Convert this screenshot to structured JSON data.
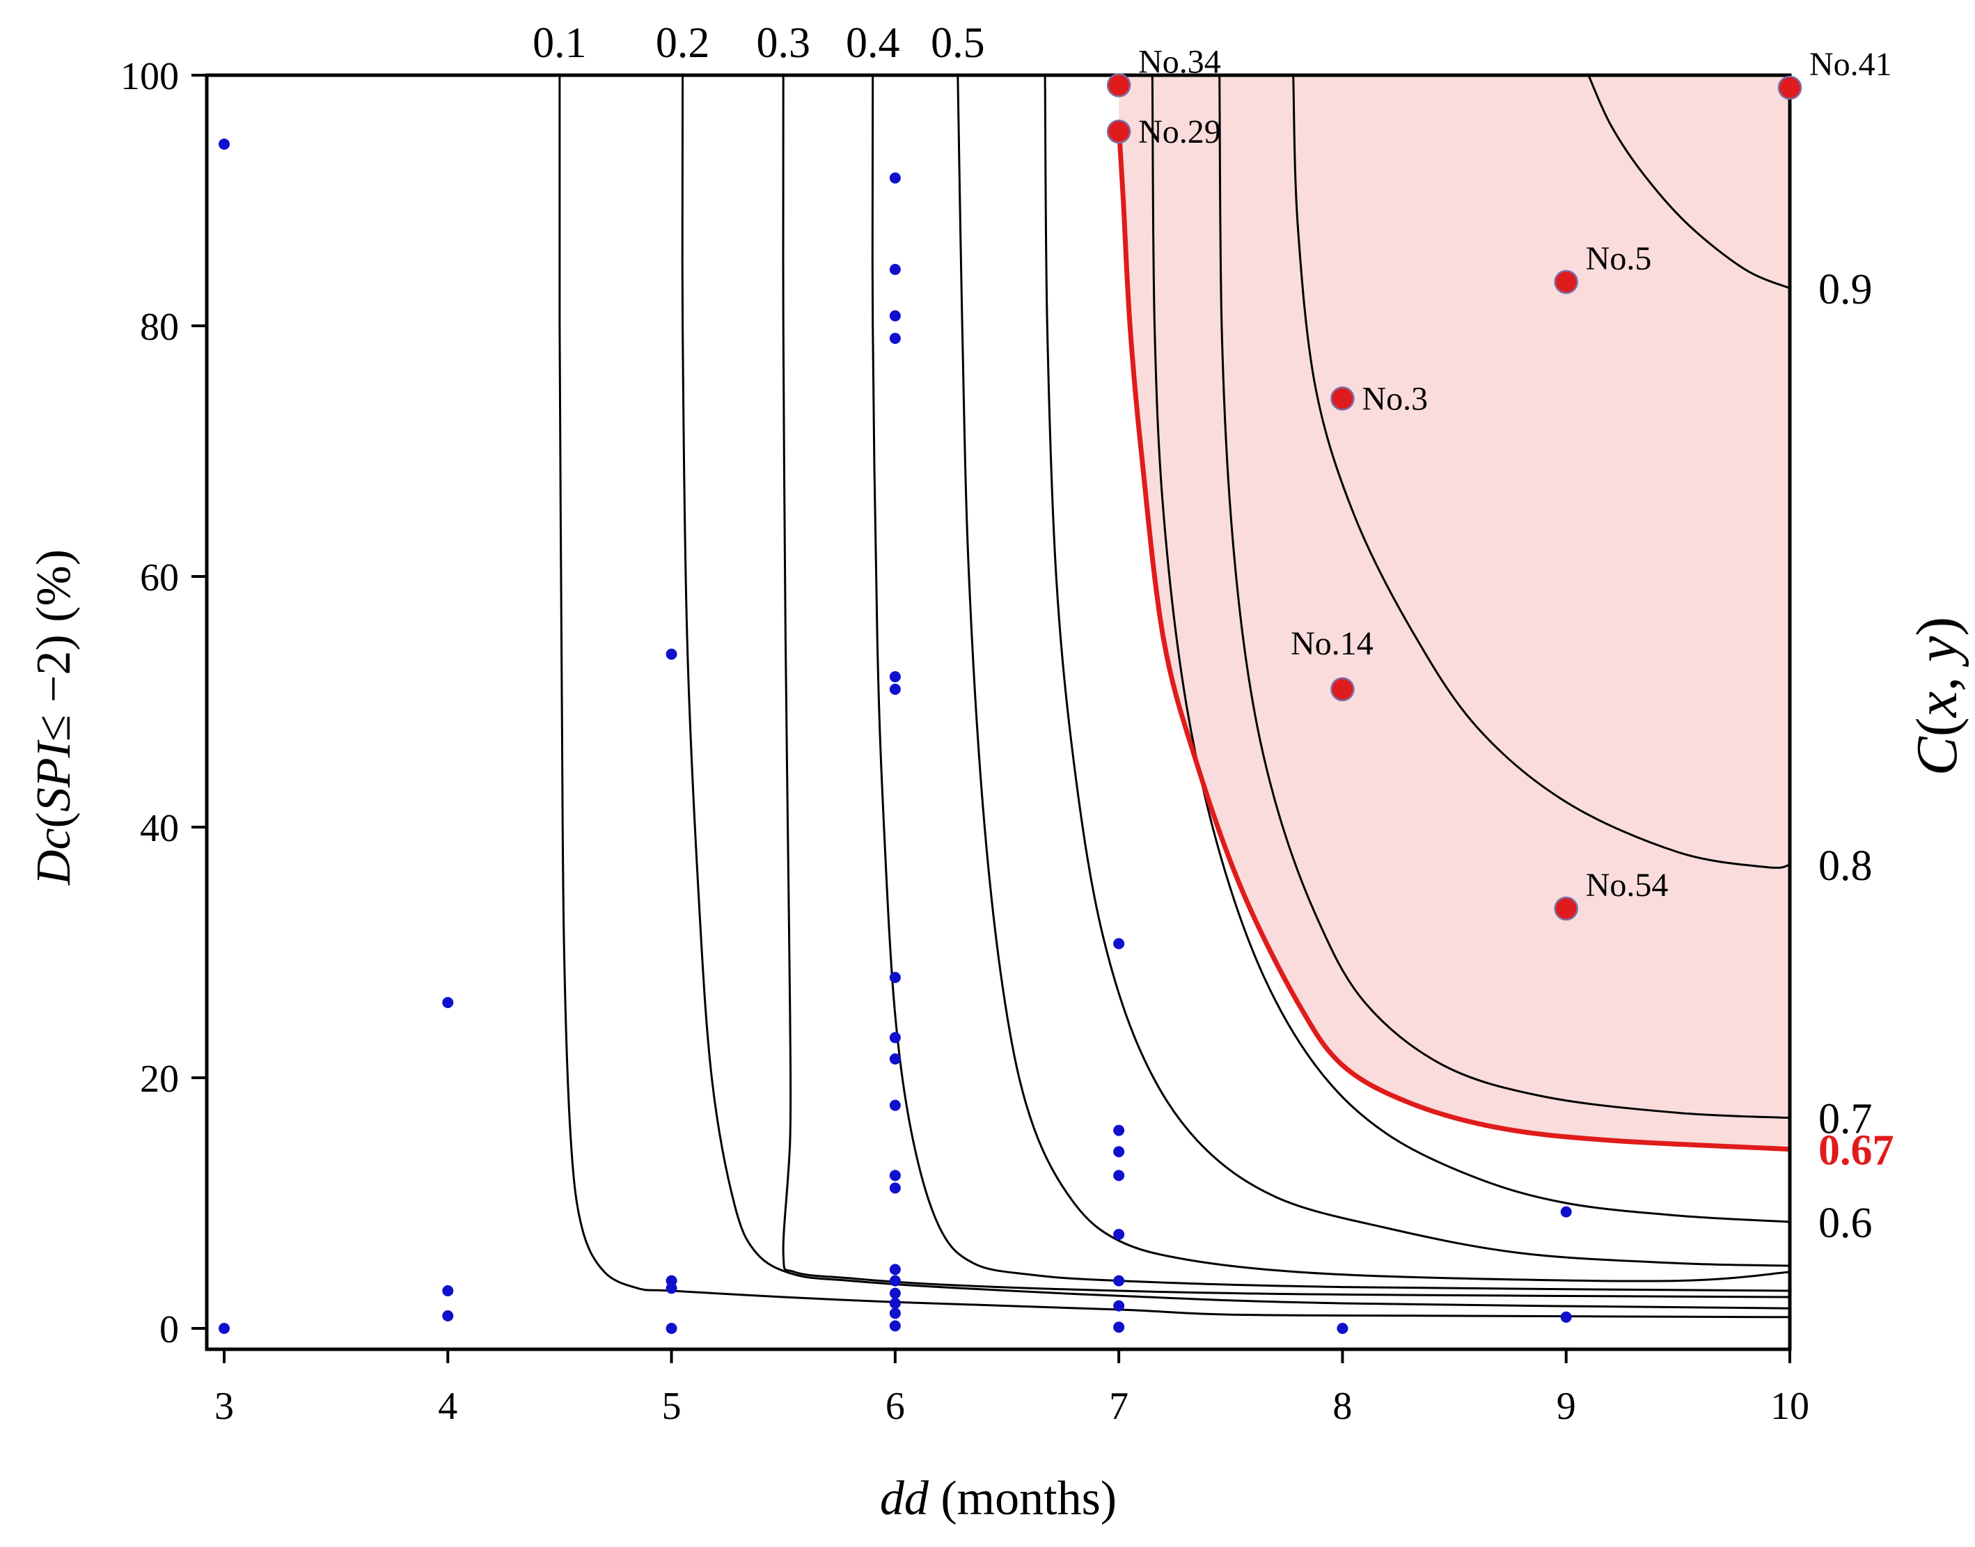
{
  "chart_data": {
    "type": "scatter",
    "title": "",
    "xlabel_italic": "dd",
    "xlabel_rest": " (months)",
    "ylabel_italic_1": "Dc",
    "ylabel_mid": "(",
    "ylabel_italic_2": "SPI",
    "ylabel_rest": "≤ −2) (%)",
    "right_label_italic_1": "C",
    "right_label_mid": "(",
    "right_label_italic_2": "x, y",
    "right_label_rest": ")",
    "xlim": [
      3,
      10
    ],
    "ylim": [
      0,
      100
    ],
    "x_ticks": [
      3,
      4,
      5,
      6,
      7,
      8,
      9,
      10
    ],
    "y_ticks": [
      0,
      20,
      40,
      60,
      80,
      100
    ],
    "highlight_region_color": "#fadcdc",
    "highlight_line_color": "#e01b1b",
    "point_color": "#1010cc",
    "station_color": "#e01b1b",
    "contours": [
      {
        "level": "0.1",
        "label_pos": "top",
        "highlight": false,
        "points": [
          [
            4.5,
            100
          ],
          [
            4.5,
            80
          ],
          [
            4.51,
            50
          ],
          [
            4.52,
            30
          ],
          [
            4.55,
            15
          ],
          [
            4.6,
            8
          ],
          [
            4.7,
            4.5
          ],
          [
            4.85,
            3.2
          ],
          [
            5.0,
            3.0
          ],
          [
            5.5,
            2.5
          ],
          [
            6.0,
            2.1
          ],
          [
            7.0,
            1.5
          ],
          [
            7.5,
            1.1
          ],
          [
            8.5,
            1.0
          ],
          [
            10,
            0.9
          ]
        ]
      },
      {
        "level": "0.2",
        "label_pos": "top",
        "highlight": false,
        "points": [
          [
            5.05,
            100
          ],
          [
            5.05,
            80
          ],
          [
            5.07,
            55
          ],
          [
            5.12,
            35
          ],
          [
            5.18,
            20
          ],
          [
            5.28,
            10
          ],
          [
            5.38,
            6
          ],
          [
            5.55,
            4.3
          ],
          [
            5.8,
            3.8
          ],
          [
            6.2,
            3.3
          ],
          [
            7,
            2.6
          ],
          [
            8,
            2.0
          ],
          [
            10,
            1.6
          ]
        ]
      },
      {
        "level": "0.3",
        "label_pos": "top",
        "highlight": false,
        "points": [
          [
            5.5,
            100
          ],
          [
            5.5,
            80
          ],
          [
            5.51,
            55
          ],
          [
            5.52,
            40
          ],
          [
            5.53,
            25
          ],
          [
            5.53,
            15
          ],
          [
            5.5,
            6
          ],
          [
            5.55,
            4.5
          ],
          [
            5.8,
            4.0
          ],
          [
            6.2,
            3.5
          ],
          [
            7,
            3.0
          ],
          [
            8,
            2.7
          ],
          [
            10,
            2.5
          ]
        ]
      },
      {
        "level": "0.4",
        "label_pos": "top",
        "highlight": false,
        "points": [
          [
            5.9,
            100
          ],
          [
            5.9,
            80
          ],
          [
            5.92,
            55
          ],
          [
            5.95,
            40
          ],
          [
            6.0,
            25
          ],
          [
            6.08,
            15
          ],
          [
            6.2,
            8
          ],
          [
            6.35,
            5.2
          ],
          [
            6.6,
            4.3
          ],
          [
            7,
            3.8
          ],
          [
            8,
            3.3
          ],
          [
            10,
            3.0
          ]
        ]
      },
      {
        "level": "0.5",
        "label_pos": "top",
        "highlight": false,
        "points": [
          [
            6.28,
            100
          ],
          [
            6.3,
            80
          ],
          [
            6.33,
            60
          ],
          [
            6.4,
            40
          ],
          [
            6.5,
            25
          ],
          [
            6.62,
            16
          ],
          [
            6.8,
            10
          ],
          [
            7.0,
            7
          ],
          [
            7.3,
            5.5
          ],
          [
            7.8,
            4.5
          ],
          [
            8.5,
            4.0
          ],
          [
            9.5,
            3.8
          ],
          [
            10,
            4.5
          ]
        ]
      },
      {
        "level": "",
        "label_pos": "none",
        "highlight": false,
        "points": [
          [
            6.67,
            100
          ],
          [
            6.68,
            80
          ],
          [
            6.72,
            60
          ],
          [
            6.8,
            45
          ],
          [
            6.92,
            32
          ],
          [
            7.1,
            22
          ],
          [
            7.35,
            15
          ],
          [
            7.7,
            10.5
          ],
          [
            8.2,
            8
          ],
          [
            8.8,
            6
          ],
          [
            9.5,
            5.2
          ],
          [
            10,
            5.0
          ]
        ]
      },
      {
        "level": "0.6",
        "label_pos": "right",
        "highlight": false,
        "points": [
          [
            7.15,
            100
          ],
          [
            7.16,
            80
          ],
          [
            7.2,
            65
          ],
          [
            7.3,
            50
          ],
          [
            7.45,
            38
          ],
          [
            7.65,
            28
          ],
          [
            7.9,
            20.5
          ],
          [
            8.2,
            15.5
          ],
          [
            8.6,
            12
          ],
          [
            9.0,
            10
          ],
          [
            9.5,
            9
          ],
          [
            10,
            8.5
          ]
        ]
      },
      {
        "level": "0.67",
        "label_pos": "right",
        "highlight": true,
        "points": [
          [
            7.0,
            96
          ],
          [
            7.02,
            90
          ],
          [
            7.05,
            80
          ],
          [
            7.1,
            70
          ],
          [
            7.2,
            55
          ],
          [
            7.35,
            45
          ],
          [
            7.55,
            35
          ],
          [
            7.8,
            26
          ],
          [
            8.0,
            21
          ],
          [
            8.3,
            18
          ],
          [
            8.7,
            16
          ],
          [
            9.2,
            15
          ],
          [
            10,
            14.3
          ]
        ]
      },
      {
        "level": "0.7",
        "label_pos": "right",
        "highlight": false,
        "points": [
          [
            7.45,
            100
          ],
          [
            7.46,
            80
          ],
          [
            7.5,
            65
          ],
          [
            7.58,
            52
          ],
          [
            7.7,
            42
          ],
          [
            7.88,
            33
          ],
          [
            8.1,
            26
          ],
          [
            8.45,
            21
          ],
          [
            8.9,
            18.5
          ],
          [
            9.5,
            17.2
          ],
          [
            10,
            16.8
          ]
        ]
      },
      {
        "level": "0.8",
        "label_pos": "right",
        "highlight": false,
        "points": [
          [
            7.78,
            100
          ],
          [
            7.8,
            88
          ],
          [
            7.88,
            75
          ],
          [
            8.05,
            65
          ],
          [
            8.3,
            56
          ],
          [
            8.6,
            48
          ],
          [
            9.0,
            42
          ],
          [
            9.5,
            38
          ],
          [
            9.9,
            36.8
          ],
          [
            10,
            37
          ]
        ]
      },
      {
        "level": "0.9",
        "label_pos": "right",
        "highlight": false,
        "points": [
          [
            9.1,
            100
          ],
          [
            9.2,
            96
          ],
          [
            9.35,
            92
          ],
          [
            9.55,
            88
          ],
          [
            9.8,
            84.5
          ],
          [
            10,
            83
          ]
        ]
      }
    ],
    "points": [
      [
        3,
        94.5
      ],
      [
        3,
        0
      ],
      [
        4,
        26
      ],
      [
        4,
        3
      ],
      [
        4,
        1
      ],
      [
        5,
        53.8
      ],
      [
        5,
        3.8
      ],
      [
        5,
        3.2
      ],
      [
        5,
        0
      ],
      [
        6,
        91.8
      ],
      [
        6,
        84.5
      ],
      [
        6,
        80.8
      ],
      [
        6,
        79
      ],
      [
        6,
        52
      ],
      [
        6,
        51
      ],
      [
        6,
        28
      ],
      [
        6,
        23.2
      ],
      [
        6,
        21.5
      ],
      [
        6,
        17.8
      ],
      [
        6,
        12.2
      ],
      [
        6,
        11.2
      ],
      [
        6,
        4.7
      ],
      [
        6,
        3.8
      ],
      [
        6,
        2.8
      ],
      [
        6,
        2
      ],
      [
        6,
        1.2
      ],
      [
        6,
        0.2
      ],
      [
        7,
        30.7
      ],
      [
        7,
        15.8
      ],
      [
        7,
        14.1
      ],
      [
        7,
        12.2
      ],
      [
        7,
        7.5
      ],
      [
        7,
        3.8
      ],
      [
        7,
        1.8
      ],
      [
        7,
        0.1
      ],
      [
        8,
        0
      ],
      [
        9,
        9.3
      ],
      [
        9,
        0.9
      ]
    ],
    "stations": [
      {
        "name": "No.34",
        "x": 7,
        "y": 99.2,
        "label_side": "upper-right"
      },
      {
        "name": "No.29",
        "x": 7,
        "y": 95.5,
        "label_side": "right"
      },
      {
        "name": "No.41",
        "x": 10,
        "y": 99,
        "label_side": "upper-right"
      },
      {
        "name": "No.5",
        "x": 9,
        "y": 83.5,
        "label_side": "upper-right"
      },
      {
        "name": "No.3",
        "x": 8,
        "y": 74.2,
        "label_side": "right"
      },
      {
        "name": "No.14",
        "x": 8,
        "y": 51,
        "label_side": "above"
      },
      {
        "name": "No.54",
        "x": 9,
        "y": 33.5,
        "label_side": "upper-right"
      }
    ]
  }
}
